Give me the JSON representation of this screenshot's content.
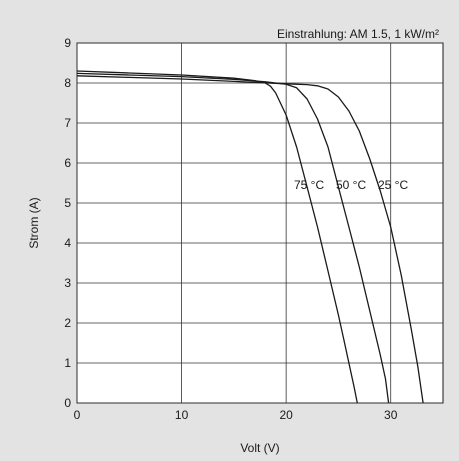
{
  "chart_data": {
    "type": "line",
    "annotation": "Einstrahlung: AM 1.5, 1 kW/m²",
    "xlabel": "Volt (V)",
    "ylabel": "Strom (A)",
    "xlim": [
      0,
      35
    ],
    "ylim": [
      0,
      9
    ],
    "x_ticks": [
      0,
      10,
      20,
      30
    ],
    "y_ticks": [
      0,
      1,
      2,
      3,
      4,
      5,
      6,
      7,
      8,
      9
    ],
    "grid": true,
    "series": [
      {
        "name": "75 °C",
        "x": [
          0,
          5,
          10,
          15,
          17,
          18,
          18.5,
          19,
          20,
          21,
          22,
          23,
          24,
          25,
          25.5,
          26,
          26.5,
          26.8
        ],
        "y": [
          8.3,
          8.25,
          8.2,
          8.12,
          8.06,
          8.0,
          7.92,
          7.75,
          7.2,
          6.4,
          5.4,
          4.4,
          3.3,
          2.2,
          1.6,
          1.0,
          0.4,
          0.0
        ]
      },
      {
        "name": "50 °C",
        "x": [
          0,
          5,
          10,
          15,
          18,
          19,
          20,
          21,
          22,
          23,
          24,
          25,
          26,
          27,
          28,
          29,
          29.5,
          29.8
        ],
        "y": [
          8.24,
          8.2,
          8.16,
          8.09,
          8.03,
          8.0,
          7.97,
          7.88,
          7.6,
          7.1,
          6.4,
          5.4,
          4.4,
          3.4,
          2.3,
          1.2,
          0.6,
          0.0
        ]
      },
      {
        "name": "25 °C",
        "x": [
          0,
          5,
          10,
          15,
          20,
          22,
          23,
          24,
          25,
          26,
          27,
          28,
          29,
          30,
          31,
          32,
          32.6,
          33.1
        ],
        "y": [
          8.18,
          8.14,
          8.1,
          8.04,
          7.98,
          7.96,
          7.93,
          7.85,
          7.65,
          7.3,
          6.8,
          6.1,
          5.3,
          4.4,
          3.2,
          1.8,
          0.9,
          0.0
        ]
      }
    ],
    "curve_labels": [
      "75 °C",
      "50 °C",
      "25 °C"
    ]
  }
}
